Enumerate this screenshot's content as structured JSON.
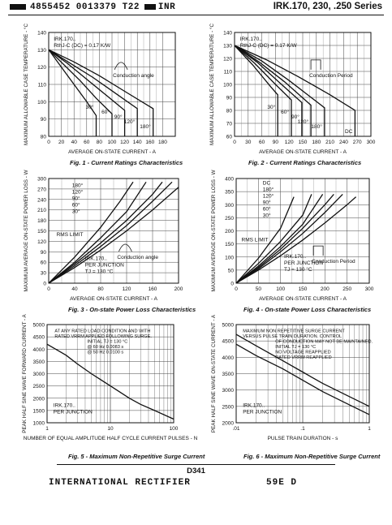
{
  "header": {
    "code": "4855452 0013379 T22",
    "brand": "INR",
    "series": "IRK.170, 230, .250 Series"
  },
  "footer": {
    "page_id": "D341",
    "company": "INTERNATIONAL RECTIFIER",
    "doc_code": "59E D"
  },
  "chart_data": [
    {
      "id": "fig1",
      "type": "line",
      "caption": "Fig. 1 - Current Ratings Characteristics",
      "xlabel": "AVERAGE ON-STATE CURRENT - A",
      "ylabel": "MAXIMUM ALLOWABLE CASE TEMPERATURE - °C",
      "xlim": [
        0,
        200
      ],
      "ylim": [
        80,
        140
      ],
      "xticks": [
        0,
        20,
        40,
        60,
        80,
        100,
        120,
        140,
        160,
        180
      ],
      "yticks": [
        80,
        90,
        100,
        110,
        120,
        130,
        140
      ],
      "note_lines": [
        "IRK.170..",
        "RthJ-C (DC) = 0.17 K/W"
      ],
      "inset_label": "Conduction angle",
      "series": [
        {
          "name": "30°",
          "x": [
            0,
            20,
            40,
            60,
            75,
            75
          ],
          "y": [
            130,
            120,
            110,
            100,
            92,
            80
          ]
        },
        {
          "name": "60°",
          "x": [
            0,
            25,
            50,
            75,
            100,
            100
          ],
          "y": [
            130,
            121,
            112,
            102,
            93,
            80
          ]
        },
        {
          "name": "90°",
          "x": [
            0,
            30,
            60,
            90,
            120,
            120
          ],
          "y": [
            130,
            122,
            113,
            104,
            95,
            80
          ]
        },
        {
          "name": "120°",
          "x": [
            0,
            35,
            70,
            105,
            140,
            140
          ],
          "y": [
            130,
            122,
            114,
            105,
            96,
            80
          ]
        },
        {
          "name": "180°",
          "x": [
            0,
            40,
            80,
            120,
            165,
            165
          ],
          "y": [
            130,
            123,
            115,
            106,
            96,
            80
          ]
        }
      ]
    },
    {
      "id": "fig2",
      "type": "line",
      "caption": "Fig. 2 - Current Ratings Characteristics",
      "xlabel": "AVERAGE ON-STATE CURRENT - A",
      "ylabel": "MAXIMUM ALLOWABLE CASE TEMPERATURE - °C",
      "xlim": [
        0,
        300
      ],
      "ylim": [
        60,
        140
      ],
      "xticks": [
        0,
        30,
        60,
        90,
        120,
        150,
        180,
        210,
        240,
        270,
        300
      ],
      "yticks": [
        60,
        70,
        80,
        90,
        100,
        110,
        120,
        130,
        140
      ],
      "note_lines": [
        "IRK.170..",
        "RthJ-C (DC) = 0.17 K/W"
      ],
      "inset_label": "Conduction Period",
      "series": [
        {
          "name": "30°",
          "x": [
            0,
            40,
            80,
            95,
            95
          ],
          "y": [
            130,
            115,
            98,
            92,
            60
          ]
        },
        {
          "name": "60°",
          "x": [
            0,
            45,
            90,
            125,
            125
          ],
          "y": [
            130,
            116,
            100,
            88,
            60
          ]
        },
        {
          "name": "90°",
          "x": [
            0,
            50,
            100,
            148,
            148
          ],
          "y": [
            130,
            117,
            101,
            86,
            60
          ]
        },
        {
          "name": "120°",
          "x": [
            0,
            55,
            110,
            168,
            168
          ],
          "y": [
            130,
            117,
            102,
            84,
            60
          ]
        },
        {
          "name": "180°",
          "x": [
            0,
            60,
            120,
            198,
            198
          ],
          "y": [
            130,
            118,
            103,
            82,
            60
          ]
        },
        {
          "name": "DC",
          "x": [
            0,
            70,
            140,
            210,
            265,
            265
          ],
          "y": [
            130,
            119,
            106,
            92,
            80,
            60
          ]
        }
      ]
    },
    {
      "id": "fig3",
      "type": "line",
      "caption": "Fig. 3 - On-state Power Loss Characteristics",
      "xlabel": "AVERAGE ON-STATE CURRENT - A",
      "ylabel": "MAXIMUM AVERAGE ON-STATE POWER LOSS - W",
      "xlim": [
        0,
        200
      ],
      "ylim": [
        0,
        300
      ],
      "xticks": [
        0,
        40,
        80,
        120,
        160,
        200
      ],
      "yticks": [
        0,
        30,
        60,
        90,
        120,
        150,
        180,
        210,
        240,
        270,
        300
      ],
      "legend_labels": [
        "180°",
        "120°",
        "90°",
        "60°",
        "30°"
      ],
      "rms_limit": "RMS LIMIT",
      "inset_label": "Conduction angle",
      "notes": [
        "IRK.170..",
        "PER JUNCTION",
        "TJ = 130 °C"
      ],
      "series": [
        {
          "name": "180°",
          "x": [
            0,
            40,
            80,
            120,
            160,
            200
          ],
          "y": [
            0,
            45,
            95,
            150,
            210,
            275
          ]
        },
        {
          "name": "120°",
          "x": [
            0,
            40,
            80,
            120,
            160,
            190
          ],
          "y": [
            0,
            50,
            105,
            165,
            235,
            290
          ]
        },
        {
          "name": "90°",
          "x": [
            0,
            40,
            80,
            120,
            160,
            175
          ],
          "y": [
            0,
            55,
            115,
            180,
            255,
            290
          ]
        },
        {
          "name": "60°",
          "x": [
            0,
            40,
            80,
            120,
            150
          ],
          "y": [
            0,
            60,
            130,
            205,
            290
          ]
        },
        {
          "name": "30°",
          "x": [
            0,
            40,
            80,
            110,
            130
          ],
          "y": [
            0,
            75,
            160,
            235,
            290
          ]
        }
      ]
    },
    {
      "id": "fig4",
      "type": "line",
      "caption": "Fig. 4 - On-state Power Loss Characteristics",
      "xlabel": "AVERAGE ON-STATE CURRENT - A",
      "ylabel": "MAXIMUM AVERAGE ON-STATE POWER LOSS - W",
      "xlim": [
        0,
        300
      ],
      "ylim": [
        0,
        400
      ],
      "xticks": [
        0,
        50,
        100,
        150,
        200,
        250,
        300
      ],
      "yticks": [
        0,
        50,
        100,
        150,
        200,
        250,
        300,
        350,
        400
      ],
      "legend_labels": [
        "DC",
        "180°",
        "120°",
        "90°",
        "60°",
        "30°"
      ],
      "rms_limit": "RMS LIMIT",
      "inset_label": "Conduction Period",
      "notes": [
        "IRK.170..",
        "PER JUNCTION",
        "TJ = 130 °C"
      ],
      "series": [
        {
          "name": "DC",
          "x": [
            0,
            50,
            100,
            150,
            200,
            250,
            270
          ],
          "y": [
            0,
            50,
            105,
            165,
            230,
            300,
            330
          ]
        },
        {
          "name": "180°",
          "x": [
            0,
            50,
            100,
            150,
            200,
            240
          ],
          "y": [
            0,
            55,
            120,
            190,
            270,
            340
          ]
        },
        {
          "name": "120°",
          "x": [
            0,
            50,
            100,
            150,
            200,
            220
          ],
          "y": [
            0,
            60,
            130,
            210,
            300,
            340
          ]
        },
        {
          "name": "90°",
          "x": [
            0,
            50,
            100,
            150,
            195
          ],
          "y": [
            0,
            65,
            140,
            225,
            340
          ]
        },
        {
          "name": "60°",
          "x": [
            0,
            50,
            100,
            150,
            170
          ],
          "y": [
            0,
            75,
            160,
            260,
            340
          ]
        },
        {
          "name": "30°",
          "x": [
            0,
            50,
            100,
            130
          ],
          "y": [
            0,
            95,
            210,
            330
          ]
        }
      ]
    },
    {
      "id": "fig5",
      "type": "line",
      "caption": "Fig. 5 - Maximum Non-Repetitive Surge Current",
      "xlabel": "NUMBER OF EQUAL AMPLITUDE HALF CYCLE CURRENT PULSES - N",
      "ylabel": "PEAK HALF SINE WAVE FORWARD CURRENT - A",
      "xscale": "log",
      "xlim": [
        1,
        100
      ],
      "ylim": [
        1000,
        5000
      ],
      "xticks": [
        1,
        10,
        100
      ],
      "yticks": [
        1000,
        1500,
        2000,
        2500,
        3000,
        3500,
        4000,
        4500,
        5000
      ],
      "annotation_lines": [
        "AT ANY RATED LOAD CONDITION AND WITH",
        "RATED VRRM APPLIED FOLLOWING SURGE.",
        "INITIAL TJ = 130 °C",
        "@ 60 Hz 0.0083 s",
        "@ 50 Hz 0.0100 s"
      ],
      "notes": [
        "IRK.170..",
        "PER JUNCTION"
      ],
      "series": [
        {
          "name": "",
          "x": [
            1,
            2,
            3,
            5,
            10,
            20,
            30,
            50,
            100
          ],
          "y": [
            4200,
            3750,
            3400,
            3000,
            2500,
            2000,
            1750,
            1500,
            1150
          ]
        }
      ]
    },
    {
      "id": "fig6",
      "type": "line",
      "caption": "Fig. 6 - Maximum Non-Repetitive Surge Current",
      "xlabel": "PULSE TRAIN DURATION - s",
      "ylabel": "PEAK HALF SINE WAVE ON-STATE CURRENT - A",
      "xscale": "log",
      "xlim": [
        0.01,
        1
      ],
      "ylim": [
        2000,
        5000
      ],
      "xticks": [
        0.01,
        0.1,
        1
      ],
      "xticklabels": [
        ".01",
        ".1",
        "1"
      ],
      "yticks": [
        2000,
        2500,
        3000,
        3500,
        4000,
        4500,
        5000
      ],
      "annotation_lines": [
        "MAXIMUM NON REPETITIVE SURGE CURRENT",
        "VERSUS PULSE TRAIN DURATION. CONTROL",
        "OF CONDUCTION MAY NOT BE MAINTAINED.",
        "INITIAL TJ = 130 °C",
        "NO VOLTAGE REAPPLIED",
        "RATED VRRM REAPPLIED"
      ],
      "notes": [
        "IRK.170..",
        "PER JUNCTION"
      ],
      "series": [
        {
          "name": "NO VOLTAGE REAPPLIED",
          "x": [
            0.01,
            0.02,
            0.05,
            0.1,
            0.2,
            0.5,
            1
          ],
          "y": [
            4700,
            4350,
            3900,
            3550,
            3200,
            2800,
            2500
          ]
        },
        {
          "name": "RATED VRRM REAPPLIED",
          "x": [
            0.01,
            0.02,
            0.05,
            0.1,
            0.2,
            0.5,
            1
          ],
          "y": [
            4400,
            4050,
            3650,
            3300,
            2950,
            2550,
            2250
          ]
        }
      ]
    }
  ]
}
